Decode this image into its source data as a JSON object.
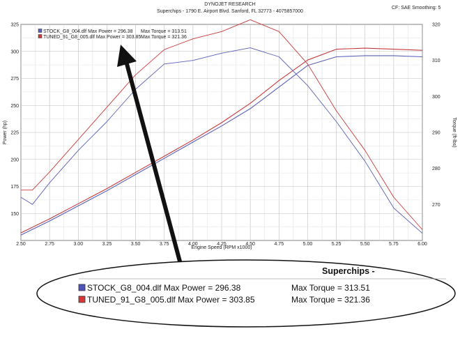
{
  "header": {
    "line1": "DYNOJET RESEARCH",
    "line2": "Superchips - 1790 E. Airport Blvd. Sanford, FL 32773 - 4075857000",
    "right": "CF: SAE  Smoothing: 5"
  },
  "colors": {
    "stock": "#5a5fb8",
    "tuned": "#c8393a",
    "grid": "#c9c9c9"
  },
  "chart_data": {
    "type": "line",
    "xlabel": "Engine Speed (RPM x1000)",
    "ylabel": "Power (hp)",
    "y2label": "Torque (ft-lbs)",
    "xlim": [
      2.5,
      6.0
    ],
    "ylim": [
      125,
      325
    ],
    "y2lim": [
      260,
      320
    ],
    "xticks": [
      "2.50",
      "2.75",
      "3.00",
      "3.25",
      "3.50",
      "3.75",
      "4.00",
      "4.25",
      "4.50",
      "4.75",
      "5.00",
      "5.25",
      "5.50",
      "5.75",
      "6.00"
    ],
    "yticks": [
      "150",
      "175",
      "200",
      "225",
      "250",
      "275",
      "300",
      "325"
    ],
    "y2ticks": [
      "270",
      "280",
      "290",
      "300",
      "310",
      "320"
    ],
    "legend": [
      {
        "file": "STOCK_G8_004.dlf",
        "power_label": "Max Power =",
        "power": "296.38",
        "torque_label": "Max Torque =",
        "torque": "313.51"
      },
      {
        "file": "TUNED_91_G8_005.dlf",
        "power_label": "Max Power =",
        "power": "303.85",
        "torque_label": "Max Torque =",
        "torque": "321.36"
      }
    ],
    "series": [
      {
        "name": "STOCK_G8_004.dlf",
        "measure": "power",
        "axis": "left",
        "x": [
          2.5,
          2.75,
          3.0,
          3.25,
          3.5,
          3.75,
          4.0,
          4.25,
          4.5,
          4.75,
          5.0,
          5.25,
          5.5,
          5.75,
          6.0
        ],
        "y": [
          130,
          143,
          157,
          171,
          186,
          201,
          216,
          231,
          247,
          267,
          287,
          295,
          296,
          296,
          295
        ]
      },
      {
        "name": "TUNED_91_G8_005.dlf",
        "measure": "power",
        "axis": "left",
        "x": [
          2.5,
          2.75,
          3.0,
          3.25,
          3.5,
          3.75,
          4.0,
          4.25,
          4.5,
          4.75,
          5.0,
          5.25,
          5.5,
          5.75,
          6.0
        ],
        "y": [
          132,
          145,
          159,
          173,
          188,
          203,
          218,
          234,
          252,
          273,
          292,
          302,
          303,
          302,
          301
        ]
      },
      {
        "name": "STOCK_G8_004.dlf",
        "measure": "torque",
        "axis": "right",
        "x": [
          2.5,
          2.6,
          2.75,
          3.0,
          3.25,
          3.5,
          3.75,
          4.0,
          4.25,
          4.5,
          4.75,
          5.0,
          5.25,
          5.5,
          5.75,
          6.0
        ],
        "y": [
          272,
          270,
          276,
          285,
          293,
          302,
          309,
          310,
          312,
          313.5,
          311,
          303,
          293,
          282,
          269,
          262
        ]
      },
      {
        "name": "TUNED_91_G8_005.dlf",
        "measure": "torque",
        "axis": "right",
        "x": [
          2.5,
          2.6,
          2.75,
          3.0,
          3.25,
          3.5,
          3.75,
          4.0,
          4.25,
          4.5,
          4.75,
          5.0,
          5.25,
          5.5,
          5.75,
          6.0
        ],
        "y": [
          274,
          274,
          279,
          288,
          297,
          306,
          313,
          316,
          318,
          321.3,
          318,
          309,
          296,
          285,
          272,
          263
        ]
      }
    ]
  },
  "callout": {
    "title": "Superchips -",
    "rows": [
      {
        "file": "STOCK_G8_004.dlf",
        "power_label": "Max Power =",
        "power": "296.38",
        "torque_label": "Max Torque =",
        "torque": "313.51"
      },
      {
        "file": "TUNED_91_G8_005.dlf",
        "power_label": "Max Power =",
        "power": "303.85",
        "torque_label": "Max Torque =",
        "torque": "321.36"
      }
    ]
  }
}
